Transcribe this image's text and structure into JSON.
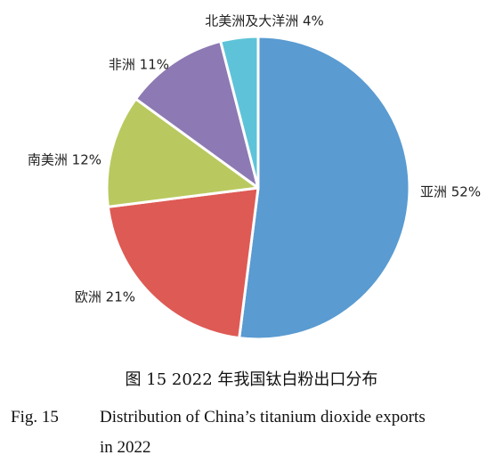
{
  "chart_data": {
    "type": "pie",
    "slices": [
      {
        "label": "亚洲",
        "value": 52,
        "display": "亚洲 52%",
        "color": "#5a9bd1"
      },
      {
        "label": "欧洲",
        "value": 21,
        "display": "欧洲 21%",
        "color": "#de5a54"
      },
      {
        "label": "南美洲",
        "value": 12,
        "display": "南美洲 12%",
        "color": "#b9c95f"
      },
      {
        "label": "非洲",
        "value": 11,
        "display": "非洲 11%",
        "color": "#8d79b3"
      },
      {
        "label": "北美洲及大洋洲",
        "value": 4,
        "display": "北美洲及大洋洲 4%",
        "color": "#5ec3d8"
      }
    ],
    "start": "12 o'clock",
    "direction": "clockwise",
    "legend": "none",
    "title": "图 15  2022 年我国钛白粉出口分布"
  },
  "caption": {
    "cn": "图 15   2022 年我国钛白粉出口分布",
    "en_fig": "Fig. 15",
    "en_line1": "Distribution of China’s titanium dioxide exports",
    "en_line2": "in 2022"
  }
}
